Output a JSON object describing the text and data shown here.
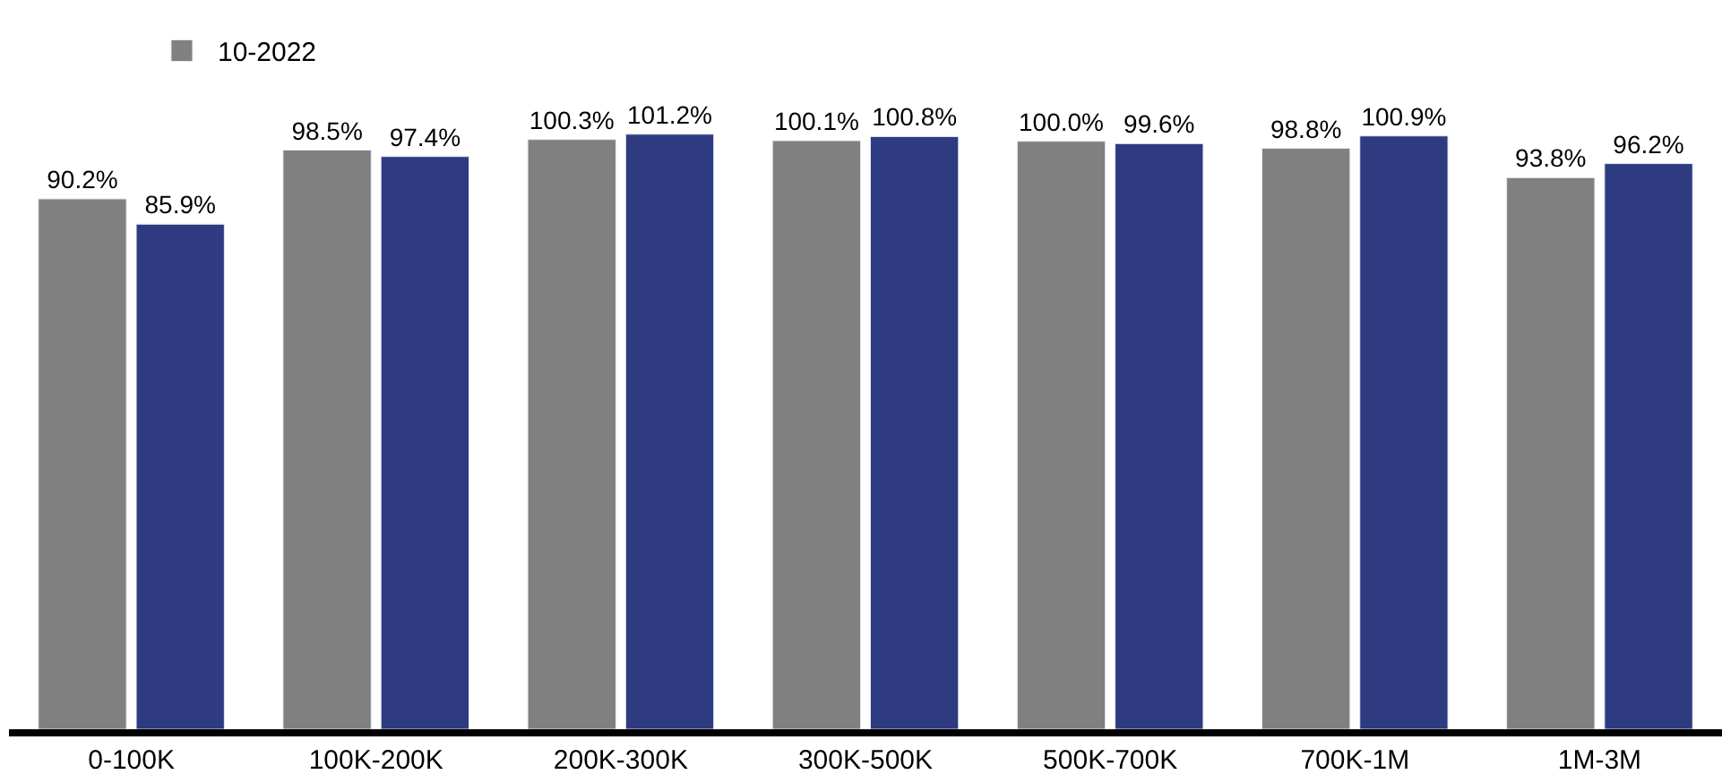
{
  "chart_data": {
    "type": "bar",
    "categories": [
      "0-100K",
      "100K-200K",
      "200K-300K",
      "300K-500K",
      "500K-700K",
      "700K-1M",
      "1M-3M"
    ],
    "series": [
      {
        "name": "10-2022",
        "color": "#808080",
        "values": [
          90.2,
          98.5,
          100.3,
          100.1,
          100.0,
          98.8,
          93.8
        ],
        "value_labels": [
          "90.2%",
          "98.5%",
          "100.3%",
          "100.1%",
          "100.0%",
          "98.8%",
          "93.8%"
        ]
      },
      {
        "color": "#2e3b80",
        "values": [
          85.9,
          97.4,
          101.2,
          100.8,
          99.6,
          100.9,
          96.2
        ],
        "value_labels": [
          "85.9%",
          "97.4%",
          "101.2%",
          "100.8%",
          "99.6%",
          "100.9%",
          "96.2%"
        ]
      }
    ],
    "legend": "top left",
    "tick_labels": "x"
  }
}
